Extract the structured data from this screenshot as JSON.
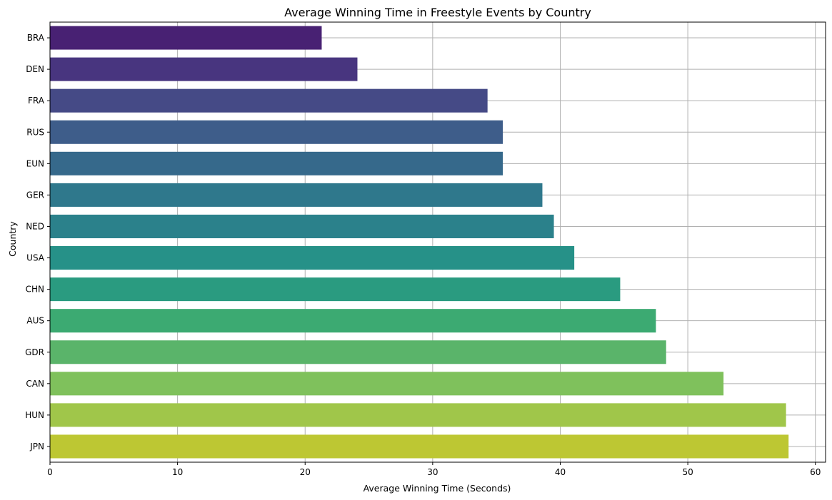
{
  "chart_data": {
    "type": "bar",
    "orientation": "horizontal",
    "title": "Average Winning Time in Freestyle Events by Country",
    "xlabel": "Average Winning Time (Seconds)",
    "ylabel": "Country",
    "xlim": [
      0,
      60.8
    ],
    "xticks": [
      0,
      10,
      20,
      30,
      40,
      50,
      60
    ],
    "grid": true,
    "categories": [
      "BRA",
      "DEN",
      "FRA",
      "RUS",
      "EUN",
      "GER",
      "NED",
      "USA",
      "CHN",
      "AUS",
      "GDR",
      "CAN",
      "HUN",
      "JPN"
    ],
    "values": [
      21.3,
      24.1,
      34.3,
      35.5,
      35.5,
      38.6,
      39.5,
      41.1,
      44.7,
      47.5,
      48.3,
      52.8,
      57.7,
      57.9
    ],
    "colors": [
      "#482173",
      "#48357f",
      "#454a86",
      "#3e5d8a",
      "#36698b",
      "#2f788c",
      "#2b818b",
      "#269188",
      "#2a9b80",
      "#3caa72",
      "#5ab46a",
      "#7fc15c",
      "#a0c64a",
      "#bdc733"
    ]
  }
}
